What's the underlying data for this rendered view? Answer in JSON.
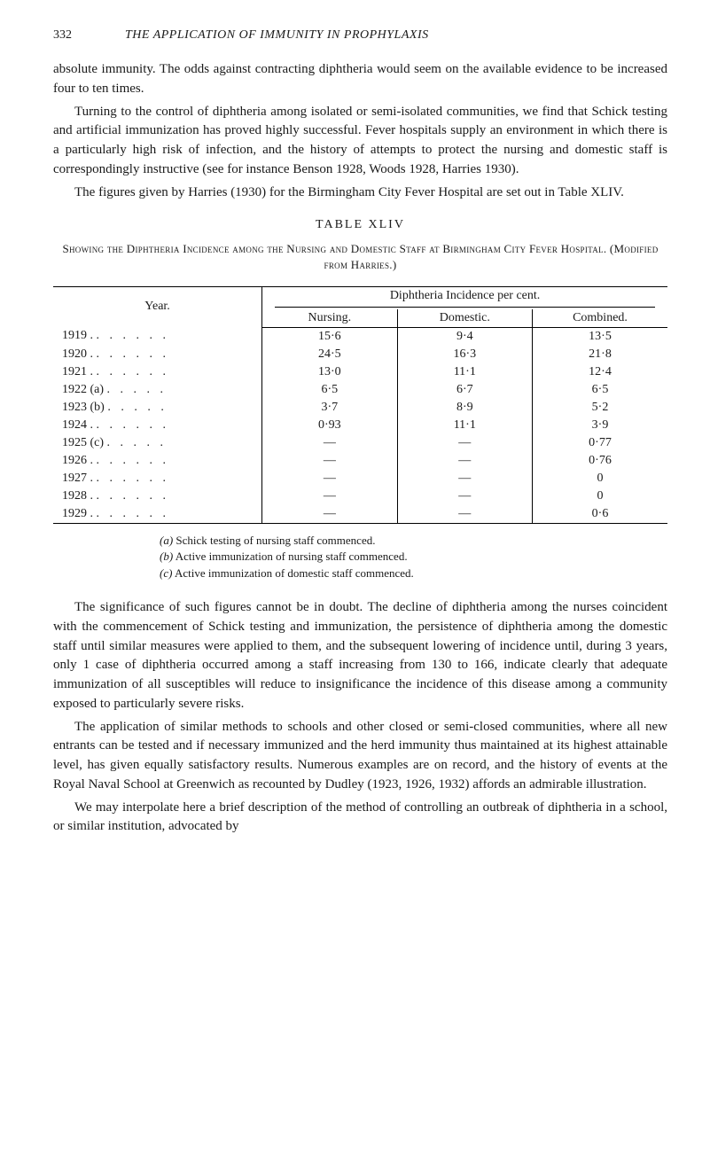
{
  "page_number": "332",
  "running_title": "THE APPLICATION OF IMMUNITY IN PROPHYLAXIS",
  "paragraphs": {
    "p1": "absolute immunity. The odds against contracting diphtheria would seem on the available evidence to be increased four to ten times.",
    "p2": "Turning to the control of diphtheria among isolated or semi-isolated communities, we find that Schick testing and artificial immunization has proved highly successful. Fever hospitals supply an environment in which there is a particularly high risk of infection, and the history of attempts to protect the nursing and domestic staff is correspondingly instructive (see for instance Benson 1928, Woods 1928, Harries 1930).",
    "p3": "The figures given by Harries (1930) for the Birmingham City Fever Hospital are set out in Table XLIV.",
    "p4": "The significance of such figures cannot be in doubt. The decline of diphtheria among the nurses coincident with the commencement of Schick testing and immunization, the persistence of diphtheria among the domestic staff until similar measures were applied to them, and the subsequent lowering of incidence until, during 3 years, only 1 case of diphtheria occurred among a staff increasing from 130 to 166, indicate clearly that adequate immunization of all susceptibles will reduce to insignificance the incidence of this disease among a community exposed to particularly severe risks.",
    "p5": "The application of similar methods to schools and other closed or semi-closed communities, where all new entrants can be tested and if necessary immunized and the herd immunity thus maintained at its highest attainable level, has given equally satisfactory results. Numerous examples are on record, and the history of events at the Royal Naval School at Greenwich as recounted by Dudley (1923, 1926, 1932) affords an admirable illustration.",
    "p6": "We may interpolate here a brief description of the method of controlling an outbreak of diphtheria in a school, or similar institution, advocated by"
  },
  "table": {
    "label": "TABLE XLIV",
    "caption": "Showing the Diphtheria Incidence among the Nursing and Domestic Staff at Birmingham City Fever Hospital. (Modified from Harries.)",
    "spanner": "Diphtheria Incidence per cent.",
    "year_header": "Year.",
    "col_nursing": "Nursing.",
    "col_domestic": "Domestic.",
    "col_combined": "Combined.",
    "rows": [
      {
        "year": "1919 .",
        "dots": ". . . . . .",
        "nursing": "15·6",
        "domestic": "9·4",
        "combined": "13·5"
      },
      {
        "year": "1920 .",
        "dots": ". . . . . .",
        "nursing": "24·5",
        "domestic": "16·3",
        "combined": "21·8"
      },
      {
        "year": "1921 .",
        "dots": ". . . . . .",
        "nursing": "13·0",
        "domestic": "11·1",
        "combined": "12·4"
      },
      {
        "year": "1922 (a)",
        "dots": ". . . . .",
        "nursing": "6·5",
        "domestic": "6·7",
        "combined": "6·5"
      },
      {
        "year": "1923 (b)",
        "dots": ". . . . .",
        "nursing": "3·7",
        "domestic": "8·9",
        "combined": "5·2"
      },
      {
        "year": "1924 .",
        "dots": ". . . . . .",
        "nursing": "0·93",
        "domestic": "11·1",
        "combined": "3·9"
      },
      {
        "year": "1925 (c)",
        "dots": ". . . . .",
        "nursing": "—",
        "domestic": "—",
        "combined": "0·77"
      },
      {
        "year": "1926 .",
        "dots": ". . . . . .",
        "nursing": "—",
        "domestic": "—",
        "combined": "0·76"
      },
      {
        "year": "1927 .",
        "dots": ". . . . . .",
        "nursing": "—",
        "domestic": "—",
        "combined": "0"
      },
      {
        "year": "1928 .",
        "dots": ". . . . . .",
        "nursing": "—",
        "domestic": "—",
        "combined": "0"
      },
      {
        "year": "1929 .",
        "dots": ". . . . . .",
        "nursing": "—",
        "domestic": "—",
        "combined": "0·6"
      }
    ],
    "notes": {
      "a_key": "(a)",
      "a_text": " Schick testing of nursing staff commenced.",
      "b_key": "(b)",
      "b_text": " Active immunization of nursing staff commenced.",
      "c_key": "(c)",
      "c_text": " Active immunization of domestic staff commenced."
    }
  }
}
